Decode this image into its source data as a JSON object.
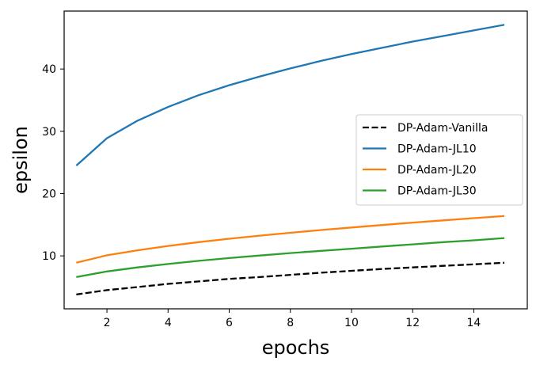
{
  "chart_data": {
    "type": "line",
    "title": "",
    "xlabel": "epochs",
    "ylabel": "epsilon",
    "xlim": [
      0.6,
      15.75
    ],
    "ylim": [
      1.5,
      49.3
    ],
    "xticks": [
      2,
      4,
      6,
      8,
      10,
      12,
      14
    ],
    "yticks": [
      10,
      20,
      30,
      40
    ],
    "grid": false,
    "legend_position": "center-right",
    "x": [
      1,
      2,
      3,
      4,
      5,
      6,
      7,
      8,
      9,
      10,
      11,
      12,
      13,
      14,
      15
    ],
    "series": [
      {
        "name": "DP-Adam-Vanilla",
        "color": "#000000",
        "dashed": true,
        "values": [
          3.8,
          4.5,
          5.0,
          5.5,
          5.9,
          6.3,
          6.6,
          6.95,
          7.3,
          7.6,
          7.9,
          8.15,
          8.4,
          8.65,
          8.9
        ]
      },
      {
        "name": "DP-Adam-JL10",
        "color": "#1f77b4",
        "dashed": false,
        "values": [
          24.5,
          28.9,
          31.7,
          33.9,
          35.8,
          37.4,
          38.8,
          40.1,
          41.3,
          42.4,
          43.4,
          44.4,
          45.3,
          46.2,
          47.1
        ]
      },
      {
        "name": "DP-Adam-JL20",
        "color": "#ff7f0e",
        "dashed": false,
        "values": [
          8.9,
          10.1,
          10.9,
          11.6,
          12.2,
          12.75,
          13.25,
          13.7,
          14.15,
          14.55,
          14.95,
          15.35,
          15.7,
          16.05,
          16.4
        ]
      },
      {
        "name": "DP-Adam-JL30",
        "color": "#2ca02c",
        "dashed": false,
        "values": [
          6.6,
          7.5,
          8.15,
          8.7,
          9.2,
          9.65,
          10.05,
          10.45,
          10.8,
          11.15,
          11.5,
          11.85,
          12.2,
          12.5,
          12.85
        ]
      }
    ]
  }
}
